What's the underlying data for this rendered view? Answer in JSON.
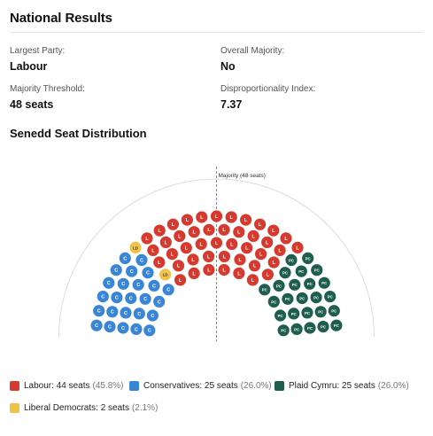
{
  "header": {
    "title": "National Results"
  },
  "stats": [
    {
      "label": "Largest Party:",
      "value": "Labour"
    },
    {
      "label": "Overall Majority:",
      "value": "No"
    },
    {
      "label": "Majority Threshold:",
      "value": "48 seats"
    },
    {
      "label": "Disproportionality Index:",
      "value": "7.37"
    }
  ],
  "chart_title": "Senedd Seat Distribution",
  "majority_label": "Majority (48 seats)",
  "colors": {
    "labour": "#d63a2f",
    "conservatives": "#3a86d6",
    "plaid": "#1f5e4f",
    "libdem": "#f2c14a",
    "arc": "#dddddd",
    "majority_line": "#888888"
  },
  "chart_data": {
    "type": "parliament",
    "total_seats": 96,
    "majority_threshold": 48,
    "series": [
      {
        "name": "Labour",
        "seats": 44,
        "share": "45.8%",
        "abbr": "L"
      },
      {
        "name": "Conservatives",
        "seats": 25,
        "share": "26.0%",
        "abbr": "C"
      },
      {
        "name": "Plaid Cymru",
        "seats": 25,
        "share": "26.0%",
        "abbr": "PC"
      },
      {
        "name": "Liberal Democrats",
        "seats": 2,
        "share": "2.1%",
        "abbr": "LD"
      }
    ]
  },
  "legend": [
    {
      "label": "Labour: 44 seats",
      "pct": "(45.8%)"
    },
    {
      "label": "Conservatives: 25 seats",
      "pct": "(26.0%)"
    },
    {
      "label": "Plaid Cymru: 25 seats",
      "pct": "(26.0%)"
    },
    {
      "label": "Liberal Democrats: 2 seats",
      "pct": "(2.1%)"
    }
  ]
}
